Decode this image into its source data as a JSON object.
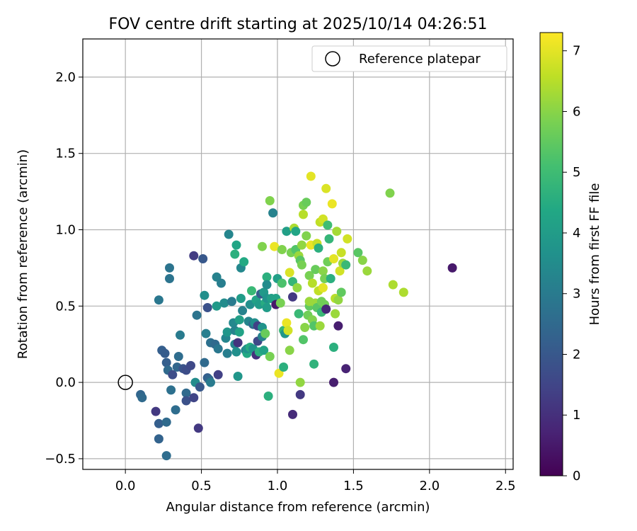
{
  "chart_data": {
    "type": "scatter",
    "title": "FOV centre drift starting at 2025/10/14 04:26:51",
    "xlabel": "Angular distance from reference (arcmin)",
    "ylabel": "Rotation from reference (arcmin)",
    "xlim": [
      -0.28,
      2.55
    ],
    "ylim": [
      -0.57,
      2.25
    ],
    "xticks": [
      0.0,
      0.5,
      1.0,
      1.5,
      2.0,
      2.5
    ],
    "xtick_labels": [
      "0.0",
      "0.5",
      "1.0",
      "1.5",
      "2.0",
      "2.5"
    ],
    "yticks": [
      -0.5,
      0.0,
      0.5,
      1.0,
      1.5,
      2.0
    ],
    "ytick_labels": [
      "−0.5",
      "0.0",
      "0.5",
      "1.0",
      "1.5",
      "2.0"
    ],
    "grid": true,
    "legend": {
      "placement": "top-right",
      "entries": [
        "Reference platepar"
      ]
    },
    "reference_point": {
      "x": 0.0,
      "y": 0.0
    },
    "colorbar": {
      "label": "Hours from first FF file",
      "min": 0,
      "max": 7.3,
      "ticks": [
        0,
        1,
        2,
        3,
        4,
        5,
        6,
        7
      ],
      "tick_labels": [
        "0",
        "1",
        "2",
        "3",
        "4",
        "5",
        "6",
        "7"
      ],
      "colormap": "viridis"
    },
    "points": [
      [
        0.1,
        -0.08,
        2.4
      ],
      [
        0.11,
        -0.1,
        2.5
      ],
      [
        0.2,
        -0.19,
        1.2
      ],
      [
        0.22,
        -0.27,
        2.2
      ],
      [
        0.22,
        -0.37,
        2.3
      ],
      [
        0.27,
        -0.26,
        2.5
      ],
      [
        0.27,
        -0.48,
        2.6
      ],
      [
        0.22,
        0.54,
        2.9
      ],
      [
        0.24,
        0.21,
        2.2
      ],
      [
        0.26,
        0.19,
        2.1
      ],
      [
        0.27,
        0.13,
        2.2
      ],
      [
        0.28,
        0.08,
        2.5
      ],
      [
        0.29,
        0.68,
        2.8
      ],
      [
        0.29,
        0.75,
        2.8
      ],
      [
        0.3,
        -0.05,
        2.7
      ],
      [
        0.31,
        0.05,
        1.7
      ],
      [
        0.33,
        -0.18,
        2.6
      ],
      [
        0.34,
        0.1,
        2.4
      ],
      [
        0.35,
        0.17,
        2.6
      ],
      [
        0.36,
        0.31,
        3.0
      ],
      [
        0.38,
        0.09,
        1.9
      ],
      [
        0.4,
        0.08,
        1.7
      ],
      [
        0.4,
        -0.07,
        2.5
      ],
      [
        0.4,
        -0.12,
        1.8
      ],
      [
        0.43,
        0.11,
        1.6
      ],
      [
        0.45,
        0.83,
        1.3
      ],
      [
        0.45,
        -0.1,
        1.5
      ],
      [
        0.46,
        0.0,
        3.5
      ],
      [
        0.47,
        0.44,
        2.8
      ],
      [
        0.48,
        -0.3,
        1.2
      ],
      [
        0.49,
        -0.03,
        2.0
      ],
      [
        0.51,
        0.81,
        2.0
      ],
      [
        0.52,
        0.57,
        3.6
      ],
      [
        0.52,
        0.13,
        2.5
      ],
      [
        0.53,
        0.32,
        3.1
      ],
      [
        0.54,
        0.03,
        2.2
      ],
      [
        0.54,
        0.49,
        1.8
      ],
      [
        0.55,
        0.02,
        2.4
      ],
      [
        0.56,
        0.0,
        3.0
      ],
      [
        0.56,
        0.26,
        2.7
      ],
      [
        0.59,
        0.25,
        2.5
      ],
      [
        0.6,
        0.69,
        3.2
      ],
      [
        0.6,
        0.5,
        3.9
      ],
      [
        0.61,
        0.22,
        2.9
      ],
      [
        0.61,
        0.05,
        1.4
      ],
      [
        0.63,
        0.65,
        3.1
      ],
      [
        0.65,
        0.52,
        3.5
      ],
      [
        0.66,
        0.29,
        3.3
      ],
      [
        0.67,
        0.33,
        3.8
      ],
      [
        0.67,
        0.19,
        3.1
      ],
      [
        0.68,
        0.97,
        3.3
      ],
      [
        0.7,
        0.53,
        3.0
      ],
      [
        0.71,
        0.39,
        3.4
      ],
      [
        0.72,
        0.34,
        3.2
      ],
      [
        0.72,
        0.84,
        4.6
      ],
      [
        0.72,
        0.25,
        3.3
      ],
      [
        0.73,
        0.9,
        4.3
      ],
      [
        0.73,
        0.2,
        3.6
      ],
      [
        0.74,
        0.04,
        3.8
      ],
      [
        0.74,
        0.26,
        1.1
      ],
      [
        0.75,
        0.41,
        4.1
      ],
      [
        0.75,
        0.33,
        4.2
      ],
      [
        0.76,
        0.75,
        3.4
      ],
      [
        0.76,
        0.55,
        4.0
      ],
      [
        0.77,
        0.47,
        3.2
      ],
      [
        0.78,
        0.79,
        4.4
      ],
      [
        0.79,
        0.21,
        3.0
      ],
      [
        0.8,
        0.19,
        4.4
      ],
      [
        0.8,
        0.22,
        3.7
      ],
      [
        0.81,
        0.4,
        3.3
      ],
      [
        0.82,
        0.51,
        3.6
      ],
      [
        0.82,
        0.23,
        4.5
      ],
      [
        0.83,
        0.6,
        4.9
      ],
      [
        0.84,
        0.38,
        2.5
      ],
      [
        0.84,
        0.22,
        3.7
      ],
      [
        0.85,
        0.39,
        3.6
      ],
      [
        0.86,
        0.18,
        1.0
      ],
      [
        0.86,
        0.54,
        4.2
      ],
      [
        0.87,
        0.37,
        1.4
      ],
      [
        0.87,
        0.27,
        1.6
      ],
      [
        0.88,
        0.2,
        4.6
      ],
      [
        0.88,
        0.51,
        4.0
      ],
      [
        0.89,
        0.58,
        2.1
      ],
      [
        0.9,
        0.36,
        3.7
      ],
      [
        0.9,
        0.3,
        3.2
      ],
      [
        0.9,
        0.89,
        5.9
      ],
      [
        0.91,
        0.59,
        3.9
      ],
      [
        0.91,
        0.21,
        4.2
      ],
      [
        0.92,
        0.52,
        4.5
      ],
      [
        0.92,
        0.32,
        5.6
      ],
      [
        0.93,
        0.55,
        3.7
      ],
      [
        0.93,
        0.69,
        4.6
      ],
      [
        0.93,
        0.64,
        3.5
      ],
      [
        0.93,
        0.49,
        4.0
      ],
      [
        0.94,
        -0.09,
        4.6
      ],
      [
        0.95,
        1.19,
        5.9
      ],
      [
        0.95,
        0.17,
        5.8
      ],
      [
        0.96,
        0.55,
        4.1
      ],
      [
        0.97,
        1.11,
        3.2
      ],
      [
        0.98,
        0.89,
        7.1
      ],
      [
        0.99,
        0.55,
        4.2
      ],
      [
        0.99,
        0.51,
        0.5
      ],
      [
        1.0,
        0.68,
        4.1
      ],
      [
        1.01,
        0.06,
        7.1
      ],
      [
        1.02,
        0.52,
        5.8
      ],
      [
        1.03,
        0.87,
        5.9
      ],
      [
        1.03,
        0.65,
        5.2
      ],
      [
        1.04,
        0.34,
        4.8
      ],
      [
        1.04,
        0.1,
        4.6
      ],
      [
        1.05,
        0.32,
        3.8
      ],
      [
        1.06,
        0.39,
        7.1
      ],
      [
        1.06,
        0.99,
        4.1
      ],
      [
        1.07,
        0.34,
        6.8
      ],
      [
        1.08,
        0.21,
        6.0
      ],
      [
        1.08,
        0.72,
        6.9
      ],
      [
        1.09,
        0.85,
        5.8
      ],
      [
        1.1,
        0.66,
        4.8
      ],
      [
        1.1,
        -0.21,
        0.9
      ],
      [
        1.1,
        0.56,
        1.2
      ],
      [
        1.11,
        1.01,
        6.4
      ],
      [
        1.12,
        0.87,
        5.3
      ],
      [
        1.12,
        0.99,
        4.3
      ],
      [
        1.13,
        0.62,
        6.1
      ],
      [
        1.14,
        0.83,
        6.2
      ],
      [
        1.14,
        0.45,
        4.9
      ],
      [
        1.15,
        0.8,
        5.4
      ],
      [
        1.15,
        -0.08,
        1.2
      ],
      [
        1.15,
        0.0,
        6.1
      ],
      [
        1.16,
        0.9,
        6.1
      ],
      [
        1.16,
        0.77,
        5.8
      ],
      [
        1.17,
        0.28,
        5.3
      ],
      [
        1.17,
        1.1,
        6.5
      ],
      [
        1.17,
        1.16,
        5.8
      ],
      [
        1.18,
        0.36,
        6.0
      ],
      [
        1.19,
        0.96,
        5.9
      ],
      [
        1.19,
        1.18,
        5.6
      ],
      [
        1.2,
        0.44,
        5.7
      ],
      [
        1.21,
        0.5,
        5.5
      ],
      [
        1.21,
        0.53,
        6.2
      ],
      [
        1.21,
        0.7,
        5.8
      ],
      [
        1.22,
        0.9,
        7.1
      ],
      [
        1.22,
        1.35,
        7.0
      ],
      [
        1.23,
        0.41,
        5.9
      ],
      [
        1.23,
        0.65,
        6.5
      ],
      [
        1.24,
        0.37,
        5.3
      ],
      [
        1.24,
        0.12,
        4.7
      ],
      [
        1.25,
        0.74,
        5.6
      ],
      [
        1.25,
        0.52,
        6.2
      ],
      [
        1.26,
        0.49,
        5.4
      ],
      [
        1.26,
        0.91,
        6.7
      ],
      [
        1.27,
        0.6,
        6.6
      ],
      [
        1.27,
        0.88,
        4.6
      ],
      [
        1.28,
        1.05,
        6.6
      ],
      [
        1.28,
        0.37,
        6.2
      ],
      [
        1.29,
        0.46,
        4.9
      ],
      [
        1.29,
        0.53,
        5.7
      ],
      [
        1.3,
        0.62,
        7.0
      ],
      [
        1.3,
        1.07,
        6.8
      ],
      [
        1.3,
        0.73,
        6.0
      ],
      [
        1.31,
        0.68,
        5.8
      ],
      [
        1.31,
        0.51,
        5.7
      ],
      [
        1.32,
        0.48,
        0.8
      ],
      [
        1.32,
        1.27,
        6.9
      ],
      [
        1.33,
        0.79,
        5.7
      ],
      [
        1.33,
        1.03,
        5.0
      ],
      [
        1.34,
        0.94,
        4.8
      ],
      [
        1.35,
        0.68,
        4.6
      ],
      [
        1.36,
        1.17,
        7.1
      ],
      [
        1.37,
        0.81,
        7.0
      ],
      [
        1.37,
        0.0,
        0.6
      ],
      [
        1.37,
        0.23,
        4.6
      ],
      [
        1.38,
        0.55,
        6.5
      ],
      [
        1.38,
        0.45,
        6.2
      ],
      [
        1.39,
        0.99,
        6.3
      ],
      [
        1.4,
        0.37,
        0.6
      ],
      [
        1.4,
        0.54,
        6.1
      ],
      [
        1.41,
        0.73,
        6.8
      ],
      [
        1.42,
        0.85,
        6.7
      ],
      [
        1.42,
        0.59,
        5.5
      ],
      [
        1.43,
        0.78,
        6.2
      ],
      [
        1.45,
        0.09,
        0.7
      ],
      [
        1.45,
        0.77,
        4.9
      ],
      [
        1.46,
        0.94,
        6.8
      ],
      [
        1.53,
        0.85,
        5.4
      ],
      [
        1.56,
        0.8,
        6.0
      ],
      [
        1.59,
        0.73,
        6.2
      ],
      [
        1.74,
        1.24,
        5.9
      ],
      [
        1.76,
        0.64,
        6.4
      ],
      [
        1.83,
        0.59,
        6.4
      ],
      [
        2.15,
        0.75,
        0.5
      ]
    ]
  }
}
